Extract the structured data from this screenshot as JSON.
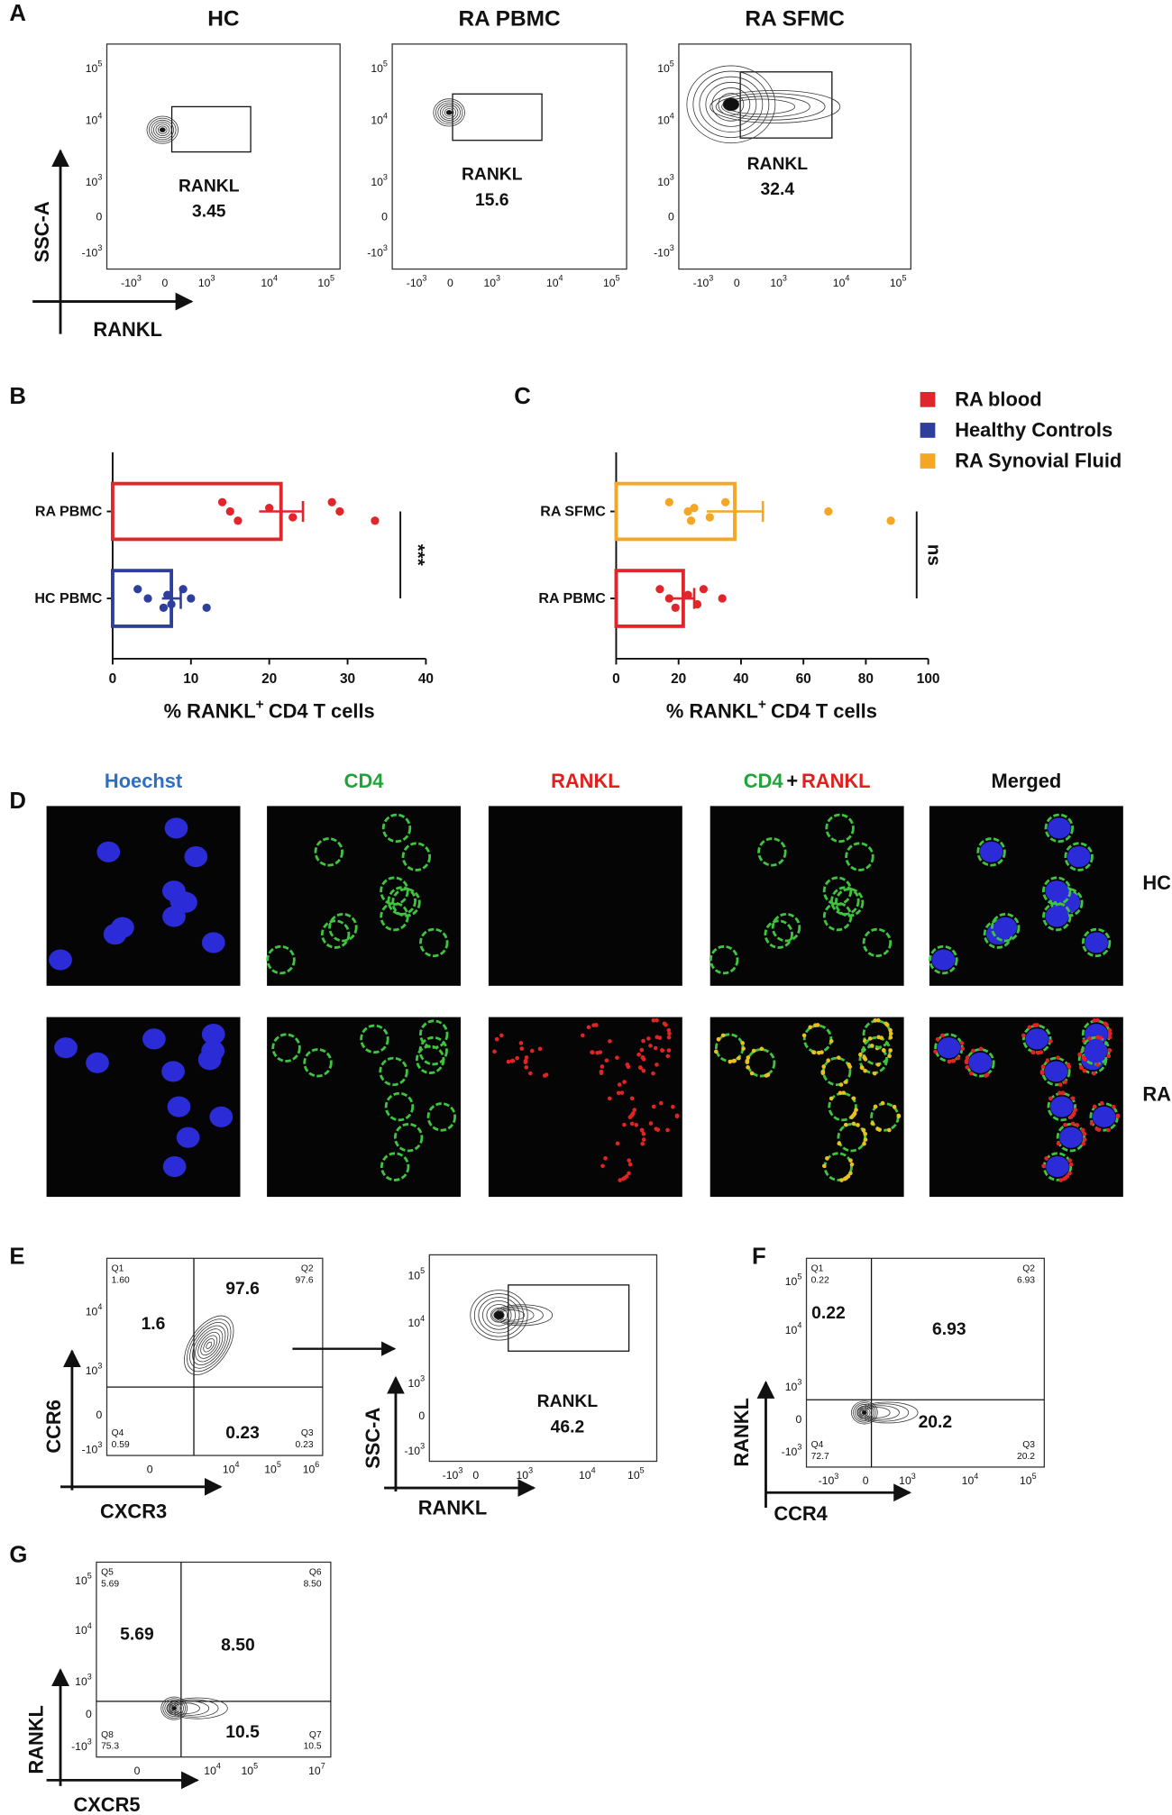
{
  "panel_labels": {
    "a": "A",
    "b": "B",
    "c": "C",
    "d": "D",
    "e": "E",
    "f": "F",
    "g": "G"
  },
  "panel_a": {
    "y_axis": "SSC-A",
    "x_axis": "RANKL",
    "yticks": [
      [
        "10",
        "5"
      ],
      [
        "10",
        "4"
      ],
      [
        "10",
        "3"
      ],
      [
        "0"
      ],
      [
        "-10",
        "3"
      ]
    ],
    "xticks": [
      [
        "-10",
        "3"
      ],
      [
        "0"
      ],
      [
        "10",
        "3"
      ],
      [
        "10",
        "4"
      ],
      [
        "10",
        "5"
      ]
    ],
    "plots": [
      {
        "title": "HC",
        "gate_label": "RANKL",
        "gate_value": "3.45"
      },
      {
        "title": "RA PBMC",
        "gate_label": "RANKL",
        "gate_value": "15.6"
      },
      {
        "title": "RA SFMC",
        "gate_label": "RANKL",
        "gate_value": "32.4"
      }
    ]
  },
  "chart_data": [
    {
      "type": "bar",
      "categories": [
        "RA PBMC",
        "HC PBMC"
      ],
      "values": [
        21.5,
        7.5
      ],
      "errors": [
        2.8,
        1.2
      ],
      "colors": [
        "#e0262b",
        "#2e3e9c"
      ],
      "points": [
        [
          14,
          15,
          16,
          20,
          23,
          28,
          29,
          33.5
        ],
        [
          3.2,
          4.5,
          6.5,
          7,
          7.5,
          9,
          10,
          12
        ]
      ],
      "xlim": [
        0,
        40
      ],
      "xticks": [
        0,
        10,
        20,
        30,
        40
      ],
      "xlabel": {
        "text": "% RANKL",
        "sup": "+",
        "rest": "CD4 T cells"
      },
      "significance": "***"
    },
    {
      "type": "bar",
      "categories": [
        "RA SFMC",
        "RA PBMC"
      ],
      "values": [
        38,
        21.5
      ],
      "errors": [
        9,
        3.5
      ],
      "colors": [
        "#f5a623",
        "#e0262b"
      ],
      "points": [
        [
          17,
          23,
          24,
          25,
          30,
          35,
          68,
          88
        ],
        [
          14,
          17,
          19,
          23,
          26,
          28,
          34
        ]
      ],
      "xlim": [
        0,
        100
      ],
      "xticks": [
        0,
        20,
        40,
        60,
        80,
        100
      ],
      "xlabel": {
        "text": "% RANKL",
        "sup": "+",
        "rest": "CD4 T cells"
      },
      "significance": "ns"
    }
  ],
  "legend": [
    {
      "name": "RA blood",
      "color": "#e0262b"
    },
    {
      "name": "Healthy Controls",
      "color": "#2e3e9c"
    },
    {
      "name": "RA Synovial Fluid",
      "color": "#f5a623"
    }
  ],
  "panel_d": {
    "columns": [
      [
        {
          "text": "Hoechst",
          "color": "#2e6fbf"
        }
      ],
      [
        {
          "text": "CD4",
          "color": "#22a33a"
        }
      ],
      [
        {
          "text": "RANKL",
          "color": "#e02020"
        }
      ],
      [
        {
          "text": "CD4",
          "color": "#22a33a"
        },
        {
          "text": "+",
          "color": "#111111"
        },
        {
          "text": "RANKL",
          "color": "#e02020"
        }
      ],
      [
        {
          "text": "Merged",
          "color": "#111111"
        }
      ]
    ],
    "rows": [
      "HC",
      "RA"
    ]
  },
  "panel_e": {
    "gating": {
      "y_axis": "CCR6",
      "x_axis": "CXCR3",
      "yticks": [
        [
          "10",
          "4"
        ],
        [
          "10",
          "3"
        ],
        [
          "0"
        ],
        [
          "-10",
          "3"
        ]
      ],
      "xticks": [
        [
          "0"
        ],
        [
          "10",
          "4"
        ],
        [
          "10",
          "5"
        ],
        [
          "10",
          "6"
        ]
      ],
      "quadrants": [
        {
          "name": "Q1",
          "value": "1.60"
        },
        {
          "name": "Q2",
          "value": "97.6"
        },
        {
          "name": "Q4",
          "value": "0.59"
        },
        {
          "name": "Q3",
          "value": "0.23"
        }
      ],
      "large_labels": [
        "1.6",
        "97.6",
        "0.23"
      ]
    },
    "rankl": {
      "y_axis": "SSC-A",
      "x_axis": "RANKL",
      "yticks": [
        [
          "10",
          "5"
        ],
        [
          "10",
          "4"
        ],
        [
          "10",
          "3"
        ],
        [
          "0"
        ],
        [
          "-10",
          "3"
        ]
      ],
      "xticks": [
        [
          "-10",
          "3"
        ],
        [
          "0"
        ],
        [
          "10",
          "3"
        ],
        [
          "10",
          "4"
        ],
        [
          "10",
          "5"
        ]
      ],
      "gate_label": "RANKL",
      "gate_value": "46.2"
    }
  },
  "panel_f": {
    "y_axis": "RANKL",
    "x_axis": "CCR4",
    "yticks": [
      [
        "10",
        "5"
      ],
      [
        "10",
        "4"
      ],
      [
        "10",
        "3"
      ],
      [
        "0"
      ],
      [
        "-10",
        "3"
      ]
    ],
    "xticks": [
      [
        "-10",
        "3"
      ],
      [
        "0"
      ],
      [
        "10",
        "3"
      ],
      [
        "10",
        "4"
      ],
      [
        "10",
        "5"
      ]
    ],
    "quadrants": [
      {
        "name": "Q1",
        "value": "0.22"
      },
      {
        "name": "Q2",
        "value": "6.93"
      },
      {
        "name": "Q4",
        "value": "72.7"
      },
      {
        "name": "Q3",
        "value": "20.2"
      }
    ],
    "large_labels": [
      "0.22",
      "6.93",
      "20.2"
    ]
  },
  "panel_g": {
    "y_axis": "RANKL",
    "x_axis": "CXCR5",
    "yticks": [
      [
        "10",
        "5"
      ],
      [
        "10",
        "4"
      ],
      [
        "10",
        "3"
      ],
      [
        "0"
      ],
      [
        "-10",
        "3"
      ]
    ],
    "xticks": [
      [
        "0"
      ],
      [
        "10",
        "4"
      ],
      [
        "10",
        "5"
      ],
      [
        "10",
        "7"
      ]
    ],
    "quadrants": [
      {
        "name": "Q5",
        "value": "5.69"
      },
      {
        "name": "Q6",
        "value": "8.50"
      },
      {
        "name": "Q8",
        "value": "75.3"
      },
      {
        "name": "Q7",
        "value": "10.5"
      }
    ],
    "large_labels": [
      "5.69",
      "8.50",
      "10.5"
    ]
  }
}
